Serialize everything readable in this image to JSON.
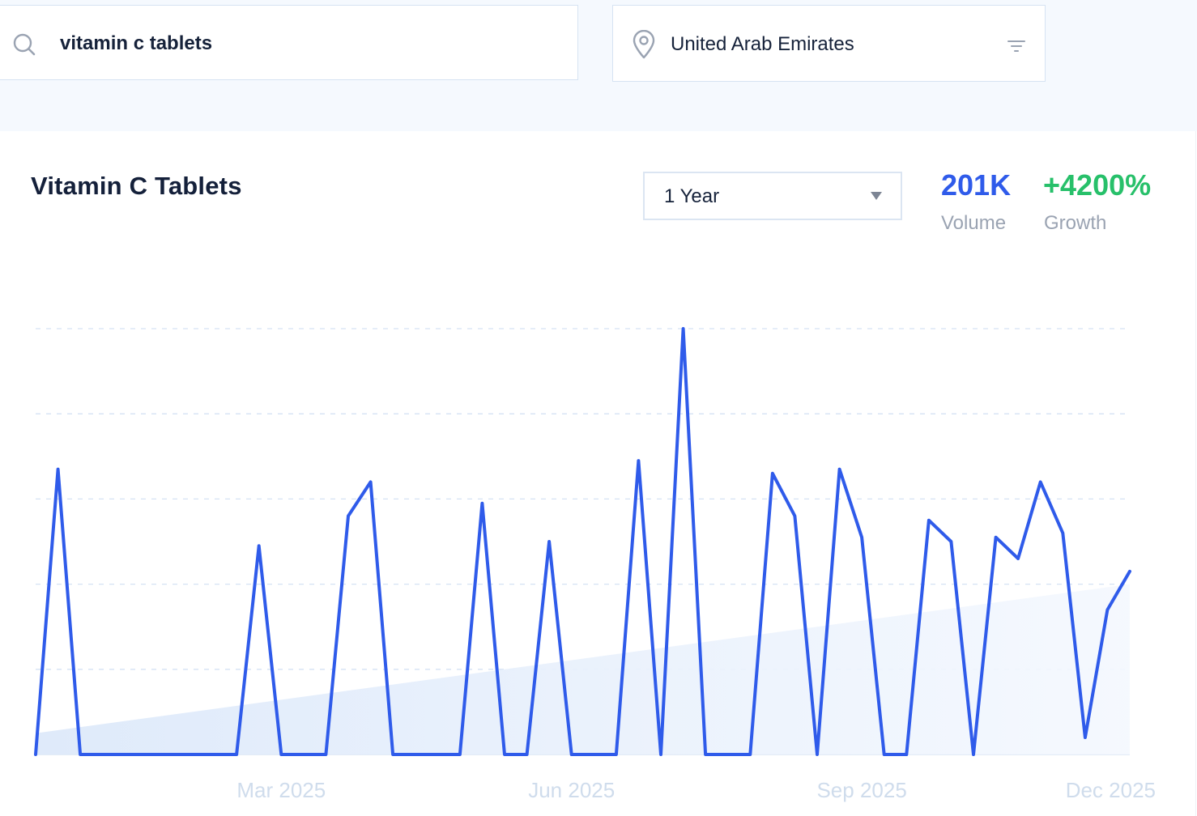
{
  "search": {
    "query": "vitamin c tablets",
    "icon": "search-icon"
  },
  "location": {
    "value": "United Arab Emirates",
    "icon": "location-pin-icon",
    "filter_icon": "filter-icon"
  },
  "card": {
    "title": "Vitamin C Tablets",
    "period": "1 Year",
    "volume_value": "201K",
    "volume_label": "Volume",
    "growth_value": "+4200%",
    "growth_label": "Growth"
  },
  "colors": {
    "line": "#2f5bea",
    "growth": "#27c06a",
    "volume": "#2f5bea",
    "area": "#e6f0fc",
    "grid": "#d5e2f4",
    "tick_text": "#cfdcec"
  },
  "chart_data": {
    "type": "line",
    "x_tick_labels": [
      "Mar 2025",
      "Jun 2025",
      "Sep 2025",
      "Dec 2025"
    ],
    "x_tick_weeks": [
      11,
      24,
      37,
      50
    ],
    "ylim": [
      0,
      100
    ],
    "grid": true,
    "series": [
      {
        "values": [
          0,
          67,
          0,
          0,
          0,
          0,
          0,
          0,
          0,
          0,
          49,
          0,
          0,
          0,
          56,
          64,
          0,
          0,
          0,
          0,
          59,
          0,
          0,
          50,
          0,
          0,
          0,
          69,
          0,
          100,
          0,
          0,
          0,
          66,
          56,
          0,
          67,
          51,
          0,
          0,
          55,
          50,
          0,
          51,
          46,
          64,
          52,
          4,
          34,
          43
        ]
      }
    ],
    "trend": {
      "start": 5,
      "end": 40
    }
  }
}
